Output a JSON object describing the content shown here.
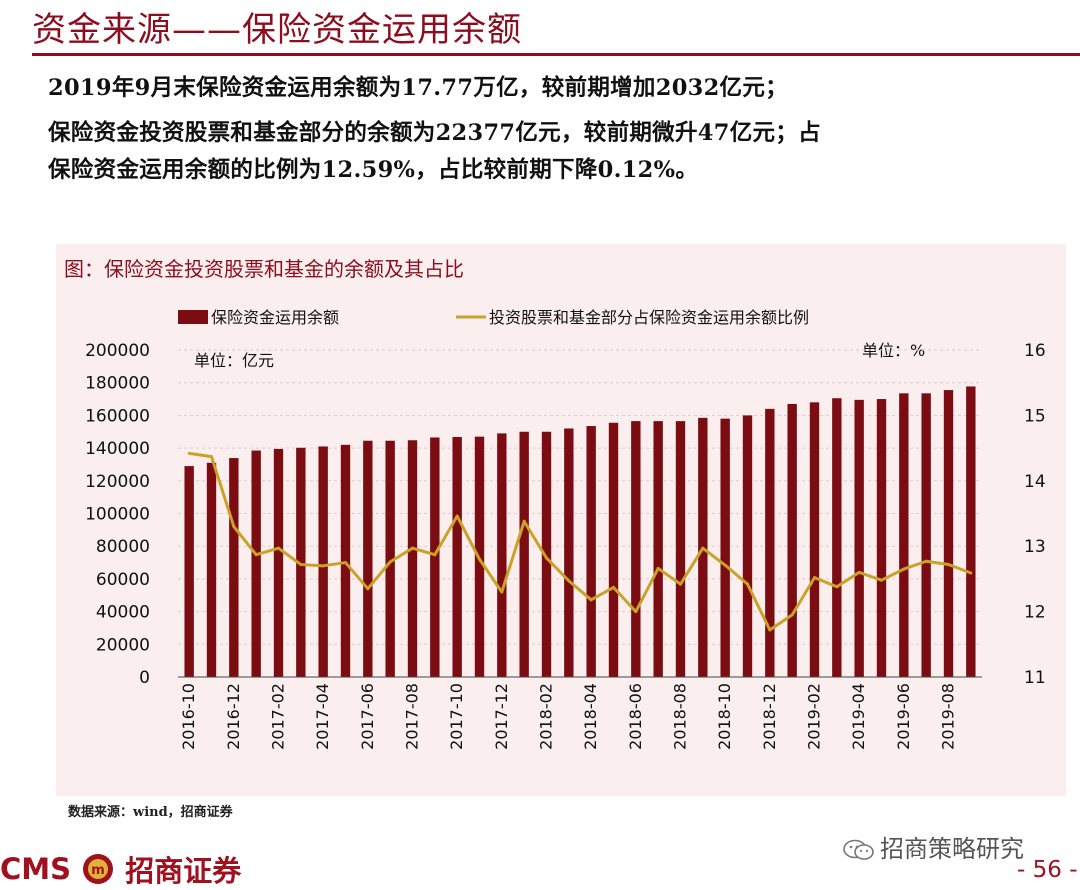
{
  "page": {
    "title": "资金来源——保险资金运用余额",
    "paragraph_1": "2019年9月末保险资金运用余额为17.77万亿，较前期增加2032亿元；",
    "paragraph_2": "保险资金投资股票和基金部分的余额为22377亿元，较前期微升47亿元；占",
    "paragraph_3": "保险资金运用余额的比例为12.59%，占比较前期下降0.12%。",
    "source": "数据来源：wind，招商证券",
    "wechat_text": "招商策略研究",
    "logo_text": "CMS",
    "logo_name": "招商证券",
    "page_number": "- 56 -"
  },
  "colors": {
    "bar": "#7b0d12",
    "line": "#c9a227",
    "title": "#8b0d1e",
    "chart_bg": "#fbeeee"
  },
  "chart_data": {
    "type": "bar+line",
    "title": "图：保险资金投资股票和基金的余额及其占比",
    "left_unit": "单位：亿元",
    "right_unit": "单位：%",
    "categories": [
      "2016-10",
      "2016-11",
      "2016-12",
      "2017-01",
      "2017-02",
      "2017-03",
      "2017-04",
      "2017-05",
      "2017-06",
      "2017-07",
      "2017-08",
      "2017-09",
      "2017-10",
      "2017-11",
      "2017-12",
      "2018-01",
      "2018-02",
      "2018-03",
      "2018-04",
      "2018-05",
      "2018-06",
      "2018-07",
      "2018-08",
      "2018-09",
      "2018-10",
      "2018-11",
      "2018-12",
      "2019-01",
      "2019-02",
      "2019-03",
      "2019-04",
      "2019-05",
      "2019-06",
      "2019-07",
      "2019-08",
      "2019-09"
    ],
    "x_tick_labels": [
      "2016-10",
      "2016-12",
      "2017-02",
      "2017-04",
      "2017-06",
      "2017-08",
      "2017-10",
      "2017-12",
      "2018-02",
      "2018-04",
      "2018-06",
      "2018-08",
      "2018-10",
      "2018-12",
      "2019-02",
      "2019-04",
      "2019-06",
      "2019-08"
    ],
    "x_tick_indices": [
      0,
      2,
      4,
      6,
      8,
      10,
      12,
      14,
      16,
      18,
      20,
      22,
      24,
      26,
      28,
      30,
      32,
      34
    ],
    "series": [
      {
        "name": "保险资金运用余额",
        "type": "bar",
        "axis": "left",
        "values": [
          129000,
          131000,
          133900,
          138500,
          139500,
          140200,
          141000,
          142000,
          144500,
          144500,
          144800,
          146500,
          146800,
          147000,
          149000,
          150000,
          150000,
          152000,
          153500,
          155500,
          156500,
          156500,
          156500,
          158500,
          158000,
          160000,
          164000,
          167000,
          168000,
          170500,
          169500,
          170000,
          173500,
          173500,
          175500,
          177700
        ]
      },
      {
        "name": "投资股票和基金部分占保险资金运用余额比例",
        "type": "line",
        "axis": "right",
        "values": [
          14.42,
          14.37,
          13.3,
          12.87,
          12.97,
          12.72,
          12.7,
          12.75,
          12.35,
          12.76,
          12.97,
          12.87,
          13.46,
          12.8,
          12.3,
          13.38,
          12.82,
          12.47,
          12.18,
          12.37,
          12.0,
          12.66,
          12.42,
          12.97,
          12.71,
          12.42,
          11.72,
          11.95,
          12.52,
          12.38,
          12.6,
          12.48,
          12.65,
          12.77,
          12.72,
          12.59
        ]
      }
    ],
    "y_left": {
      "min": 0,
      "max": 200000,
      "ticks": [
        0,
        20000,
        40000,
        60000,
        80000,
        100000,
        120000,
        140000,
        160000,
        180000,
        200000
      ]
    },
    "y_right": {
      "min": 11,
      "max": 16,
      "ticks": [
        11,
        12,
        13,
        14,
        15,
        16
      ]
    },
    "grid": "horizontal-dashed",
    "legend_position": "top"
  }
}
